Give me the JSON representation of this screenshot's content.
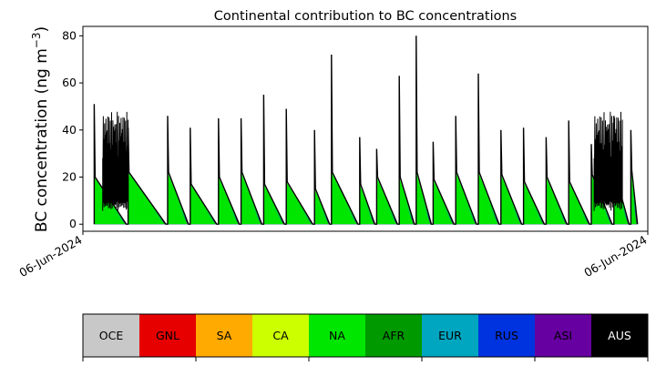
{
  "chart_data": {
    "type": "area",
    "title": "Continental contribution to BC concentrations",
    "ylabel_main": "BC concentration (ng m",
    "ylabel_sup": "−3",
    "ylabel_close": ")",
    "xlabel": "",
    "ylim": [
      -3,
      84
    ],
    "yticks": [
      0,
      20,
      40,
      60,
      80
    ],
    "ytick_labels": [
      "0",
      "20",
      "40",
      "60",
      "80"
    ],
    "xtick_labels": [
      "06-Jun-2024",
      "06-Jun-2024"
    ],
    "grid": false,
    "stacked_series_order": [
      "OCE",
      "GNL",
      "SA",
      "CA",
      "NA",
      "AFR",
      "EUR",
      "RUS",
      "ASI",
      "AUS"
    ],
    "dominant_stacked_series": [
      {
        "name": "NA",
        "approx_peak": 20
      },
      {
        "name": "EUR",
        "approx_peak": 2
      },
      {
        "name": "RUS",
        "approx_peak": 3
      },
      {
        "name": "ASI",
        "approx_peak": 5
      }
    ],
    "total_line": {
      "color": "#000000",
      "cycles": [
        {
          "x": 0.02,
          "peak": 51,
          "base": 20
        },
        {
          "x": 0.08,
          "peak": 41,
          "base": 22
        },
        {
          "x": 0.15,
          "peak": 46,
          "base": 22
        },
        {
          "x": 0.19,
          "peak": 41,
          "base": 17
        },
        {
          "x": 0.24,
          "peak": 45,
          "base": 20
        },
        {
          "x": 0.28,
          "peak": 45,
          "base": 22
        },
        {
          "x": 0.32,
          "peak": 55,
          "base": 17
        },
        {
          "x": 0.36,
          "peak": 49,
          "base": 18
        },
        {
          "x": 0.41,
          "peak": 40,
          "base": 15
        },
        {
          "x": 0.44,
          "peak": 72,
          "base": 22
        },
        {
          "x": 0.49,
          "peak": 37,
          "base": 17
        },
        {
          "x": 0.52,
          "peak": 32,
          "base": 20
        },
        {
          "x": 0.56,
          "peak": 63,
          "base": 20
        },
        {
          "x": 0.59,
          "peak": 80,
          "base": 22
        },
        {
          "x": 0.62,
          "peak": 35,
          "base": 19
        },
        {
          "x": 0.66,
          "peak": 46,
          "base": 22
        },
        {
          "x": 0.7,
          "peak": 64,
          "base": 22
        },
        {
          "x": 0.74,
          "peak": 40,
          "base": 21
        },
        {
          "x": 0.78,
          "peak": 41,
          "base": 18
        },
        {
          "x": 0.82,
          "peak": 37,
          "base": 20
        },
        {
          "x": 0.86,
          "peak": 44,
          "base": 18
        },
        {
          "x": 0.9,
          "peak": 34,
          "base": 21
        },
        {
          "x": 0.94,
          "peak": 46,
          "base": 22
        },
        {
          "x": 0.97,
          "peak": 40,
          "base": 23
        }
      ]
    },
    "legend": {
      "placement": "bottom",
      "items": [
        {
          "label": "OCE",
          "color": "#c8c8c8",
          "text_color": "#000000"
        },
        {
          "label": "GNL",
          "color": "#e60000",
          "text_color": "#000000"
        },
        {
          "label": "SA",
          "color": "#ffaa00",
          "text_color": "#000000"
        },
        {
          "label": "CA",
          "color": "#ccff00",
          "text_color": "#000000"
        },
        {
          "label": "NA",
          "color": "#00e600",
          "text_color": "#000000"
        },
        {
          "label": "AFR",
          "color": "#009900",
          "text_color": "#000000"
        },
        {
          "label": "EUR",
          "color": "#00a5c0",
          "text_color": "#000000"
        },
        {
          "label": "RUS",
          "color": "#0033e0",
          "text_color": "#000000"
        },
        {
          "label": "ASI",
          "color": "#6600a0",
          "text_color": "#000000"
        },
        {
          "label": "AUS",
          "color": "#000000",
          "text_color": "#ffffff"
        }
      ]
    }
  }
}
